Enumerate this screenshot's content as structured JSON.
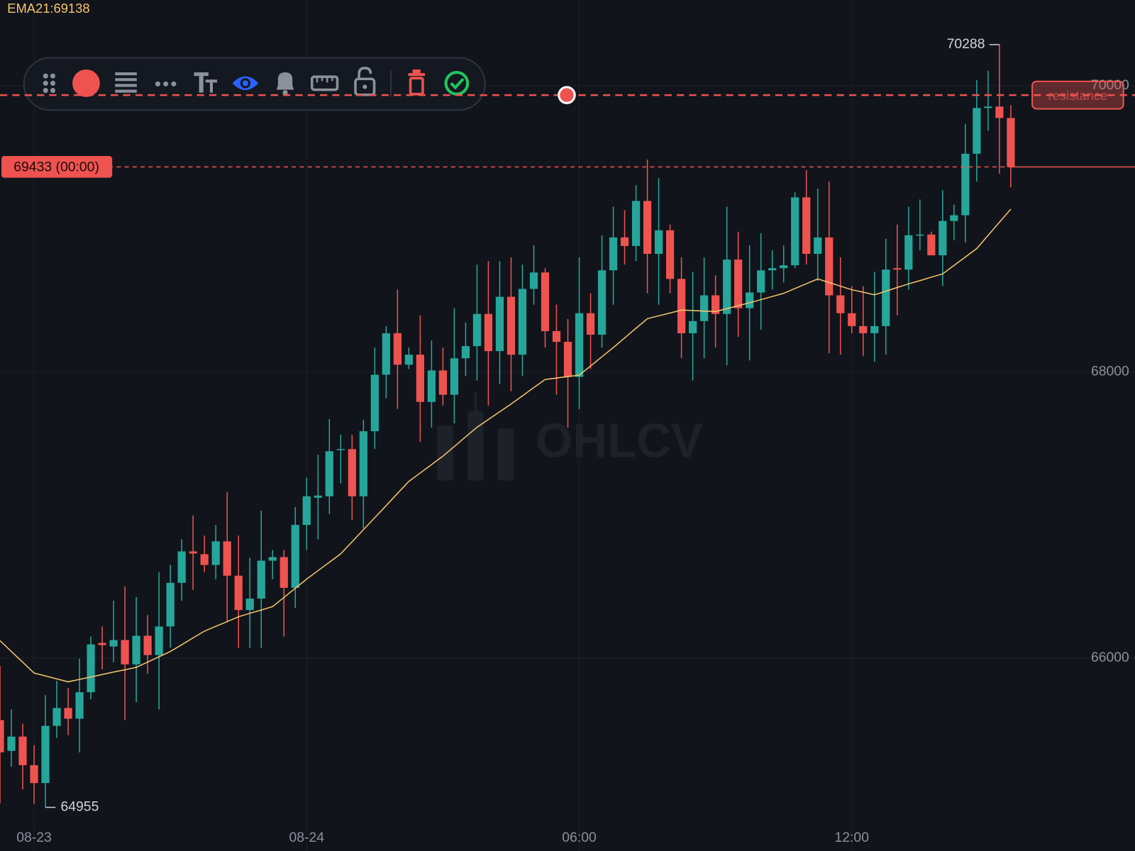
{
  "chart_data": {
    "type": "candlestick",
    "watermark": "OHLCV",
    "categories": [
      null,
      null,
      null,
      "08-23",
      null,
      null,
      null,
      null,
      null,
      null,
      null,
      null,
      null,
      null,
      null,
      null,
      null,
      null,
      null,
      null,
      null,
      null,
      null,
      null,
      null,
      null,
      null,
      "08-24",
      null,
      null,
      null,
      null,
      null,
      null,
      null,
      null,
      null,
      null,
      null,
      null,
      null,
      null,
      null,
      null,
      null,
      null,
      null,
      null,
      null,
      null,
      null,
      "06:00",
      null,
      null,
      null,
      null,
      null,
      null,
      null,
      null,
      null,
      null,
      null,
      null,
      null,
      null,
      null,
      null,
      null,
      null,
      null,
      null,
      null,
      null,
      null,
      "12:00",
      null,
      null,
      null,
      null,
      null,
      null,
      null,
      null,
      null,
      null,
      null,
      null,
      null,
      null
    ],
    "open": [
      65565,
      65350,
      65450,
      65250,
      65125,
      65525,
      65650,
      65575,
      65760,
      66105,
      66080,
      66125,
      65955,
      66155,
      66020,
      66220,
      66525,
      66745,
      66725,
      66650,
      66815,
      66575,
      66335,
      66415,
      66680,
      66705,
      66490,
      66930,
      67120,
      67130,
      67455,
      67460,
      67130,
      67585,
      67980,
      68270,
      68050,
      68120,
      67790,
      68010,
      67840,
      68095,
      68180,
      68405,
      68145,
      68525,
      68120,
      68580,
      68695,
      68285,
      68210,
      67965,
      68410,
      68260,
      68710,
      68940,
      68880,
      69195,
      68825,
      68990,
      68650,
      68270,
      68355,
      68535,
      68405,
      68785,
      68445,
      68555,
      68710,
      68725,
      68745,
      69220,
      68825,
      68940,
      68535,
      68410,
      68320,
      68270,
      68320,
      68725,
      68715,
      68955,
      68960,
      68815,
      69055,
      69095,
      69525,
      69845,
      69855,
      69775
    ],
    "high": [
      65944,
      65640,
      65540,
      65390,
      65740,
      65840,
      65790,
      65995,
      66150,
      66220,
      66400,
      66500,
      66425,
      66300,
      66600,
      66650,
      66830,
      66995,
      66855,
      66930,
      67160,
      66855,
      66700,
      67030,
      66755,
      66755,
      67055,
      67260,
      67420,
      67670,
      67560,
      67560,
      67665,
      68170,
      68320,
      68575,
      68170,
      68395,
      68220,
      68170,
      68445,
      68345,
      68750,
      68775,
      68775,
      68800,
      68750,
      68885,
      68725,
      68470,
      68370,
      68800,
      68550,
      68955,
      69155,
      69130,
      69305,
      69485,
      69355,
      69030,
      68800,
      68700,
      68800,
      68675,
      69155,
      68980,
      68885,
      68970,
      68850,
      68885,
      69255,
      69410,
      69280,
      69330,
      68800,
      68600,
      68600,
      68700,
      68930,
      69030,
      69155,
      69205,
      68980,
      69270,
      69170,
      69735,
      70040,
      70105,
      70288,
      69865
    ],
    "low": [
      64983,
      65240,
      65080,
      64980,
      64955,
      65440,
      65460,
      65340,
      65710,
      65920,
      65970,
      65565,
      65690,
      65890,
      65640,
      66070,
      66400,
      66475,
      66600,
      66550,
      66250,
      66070,
      66070,
      66070,
      66550,
      66150,
      66350,
      66755,
      66830,
      67005,
      67220,
      66965,
      66905,
      67460,
      67815,
      67740,
      68020,
      67510,
      67610,
      67765,
      67640,
      67970,
      67940,
      67765,
      67915,
      67865,
      67970,
      68470,
      68170,
      67840,
      67610,
      67740,
      68020,
      68170,
      68470,
      68750,
      68775,
      68550,
      68470,
      68550,
      68095,
      67940,
      68095,
      68170,
      68045,
      68245,
      68080,
      68295,
      68575,
      68625,
      68725,
      68750,
      68635,
      68130,
      68120,
      68270,
      68110,
      68070,
      68120,
      68395,
      68575,
      68850,
      68815,
      68600,
      68920,
      68905,
      69330,
      69685,
      69385,
      69290
    ],
    "close": [
      65340,
      65450,
      65250,
      65125,
      65525,
      65650,
      65575,
      65760,
      66095,
      66090,
      66125,
      65955,
      66155,
      66020,
      66220,
      66525,
      66745,
      66730,
      66650,
      66815,
      66575,
      66335,
      66415,
      66680,
      66705,
      66490,
      66930,
      67130,
      67135,
      67445,
      67460,
      67130,
      67585,
      67980,
      68270,
      68050,
      68120,
      67790,
      68010,
      67840,
      68095,
      68180,
      68405,
      68145,
      68525,
      68120,
      68580,
      68695,
      68285,
      68210,
      67965,
      68410,
      68260,
      68710,
      68940,
      68880,
      69195,
      68825,
      68990,
      68650,
      68270,
      68355,
      68535,
      68405,
      68785,
      68445,
      68555,
      68710,
      68725,
      68745,
      69220,
      68825,
      68940,
      68535,
      68410,
      68320,
      68270,
      68320,
      68715,
      68715,
      68955,
      68960,
      68815,
      69055,
      69095,
      69525,
      69845,
      69855,
      69775,
      69433
    ],
    "up_color": "#26a69a",
    "down_color": "#ef5350",
    "ema": {
      "label": "EMA21:69138",
      "color": "#f7c56b",
      "values": [
        66121,
        66045,
        65970,
        65894,
        65874,
        65853,
        65833,
        65850,
        65867,
        65884,
        65901,
        65917,
        65934,
        65971,
        66008,
        66045,
        66092,
        66140,
        66187,
        66221,
        66254,
        66288,
        66312,
        66335,
        66359,
        66423,
        66487,
        66551,
        66610,
        66669,
        66728,
        66812,
        66897,
        66981,
        67065,
        67150,
        67234,
        67293,
        67352,
        67411,
        67478,
        67546,
        67613,
        67667,
        67721,
        67775,
        67832,
        67890,
        67947,
        67957,
        67967,
        67977,
        68041,
        68106,
        68170,
        68237,
        68305,
        68372,
        68392,
        68412,
        68432,
        68429,
        68425,
        68422,
        68442,
        68463,
        68483,
        68505,
        68527,
        68549,
        68583,
        68616,
        68650,
        68625,
        68599,
        68574,
        68557,
        68539,
        68564,
        68590,
        68615,
        68638,
        68662,
        68685,
        68744,
        68803,
        68862,
        68954,
        69046,
        69138
      ]
    },
    "high_marker": 70288,
    "low_marker": 64955,
    "last_price": {
      "value": 69433,
      "label": "69433 (00:00)"
    },
    "hline": {
      "value": 69935,
      "label": "resistance",
      "color": "#ef5350"
    },
    "ylim": [
      64650,
      70600
    ],
    "yticks": [
      66000,
      68000,
      70000
    ],
    "grid": true
  }
}
